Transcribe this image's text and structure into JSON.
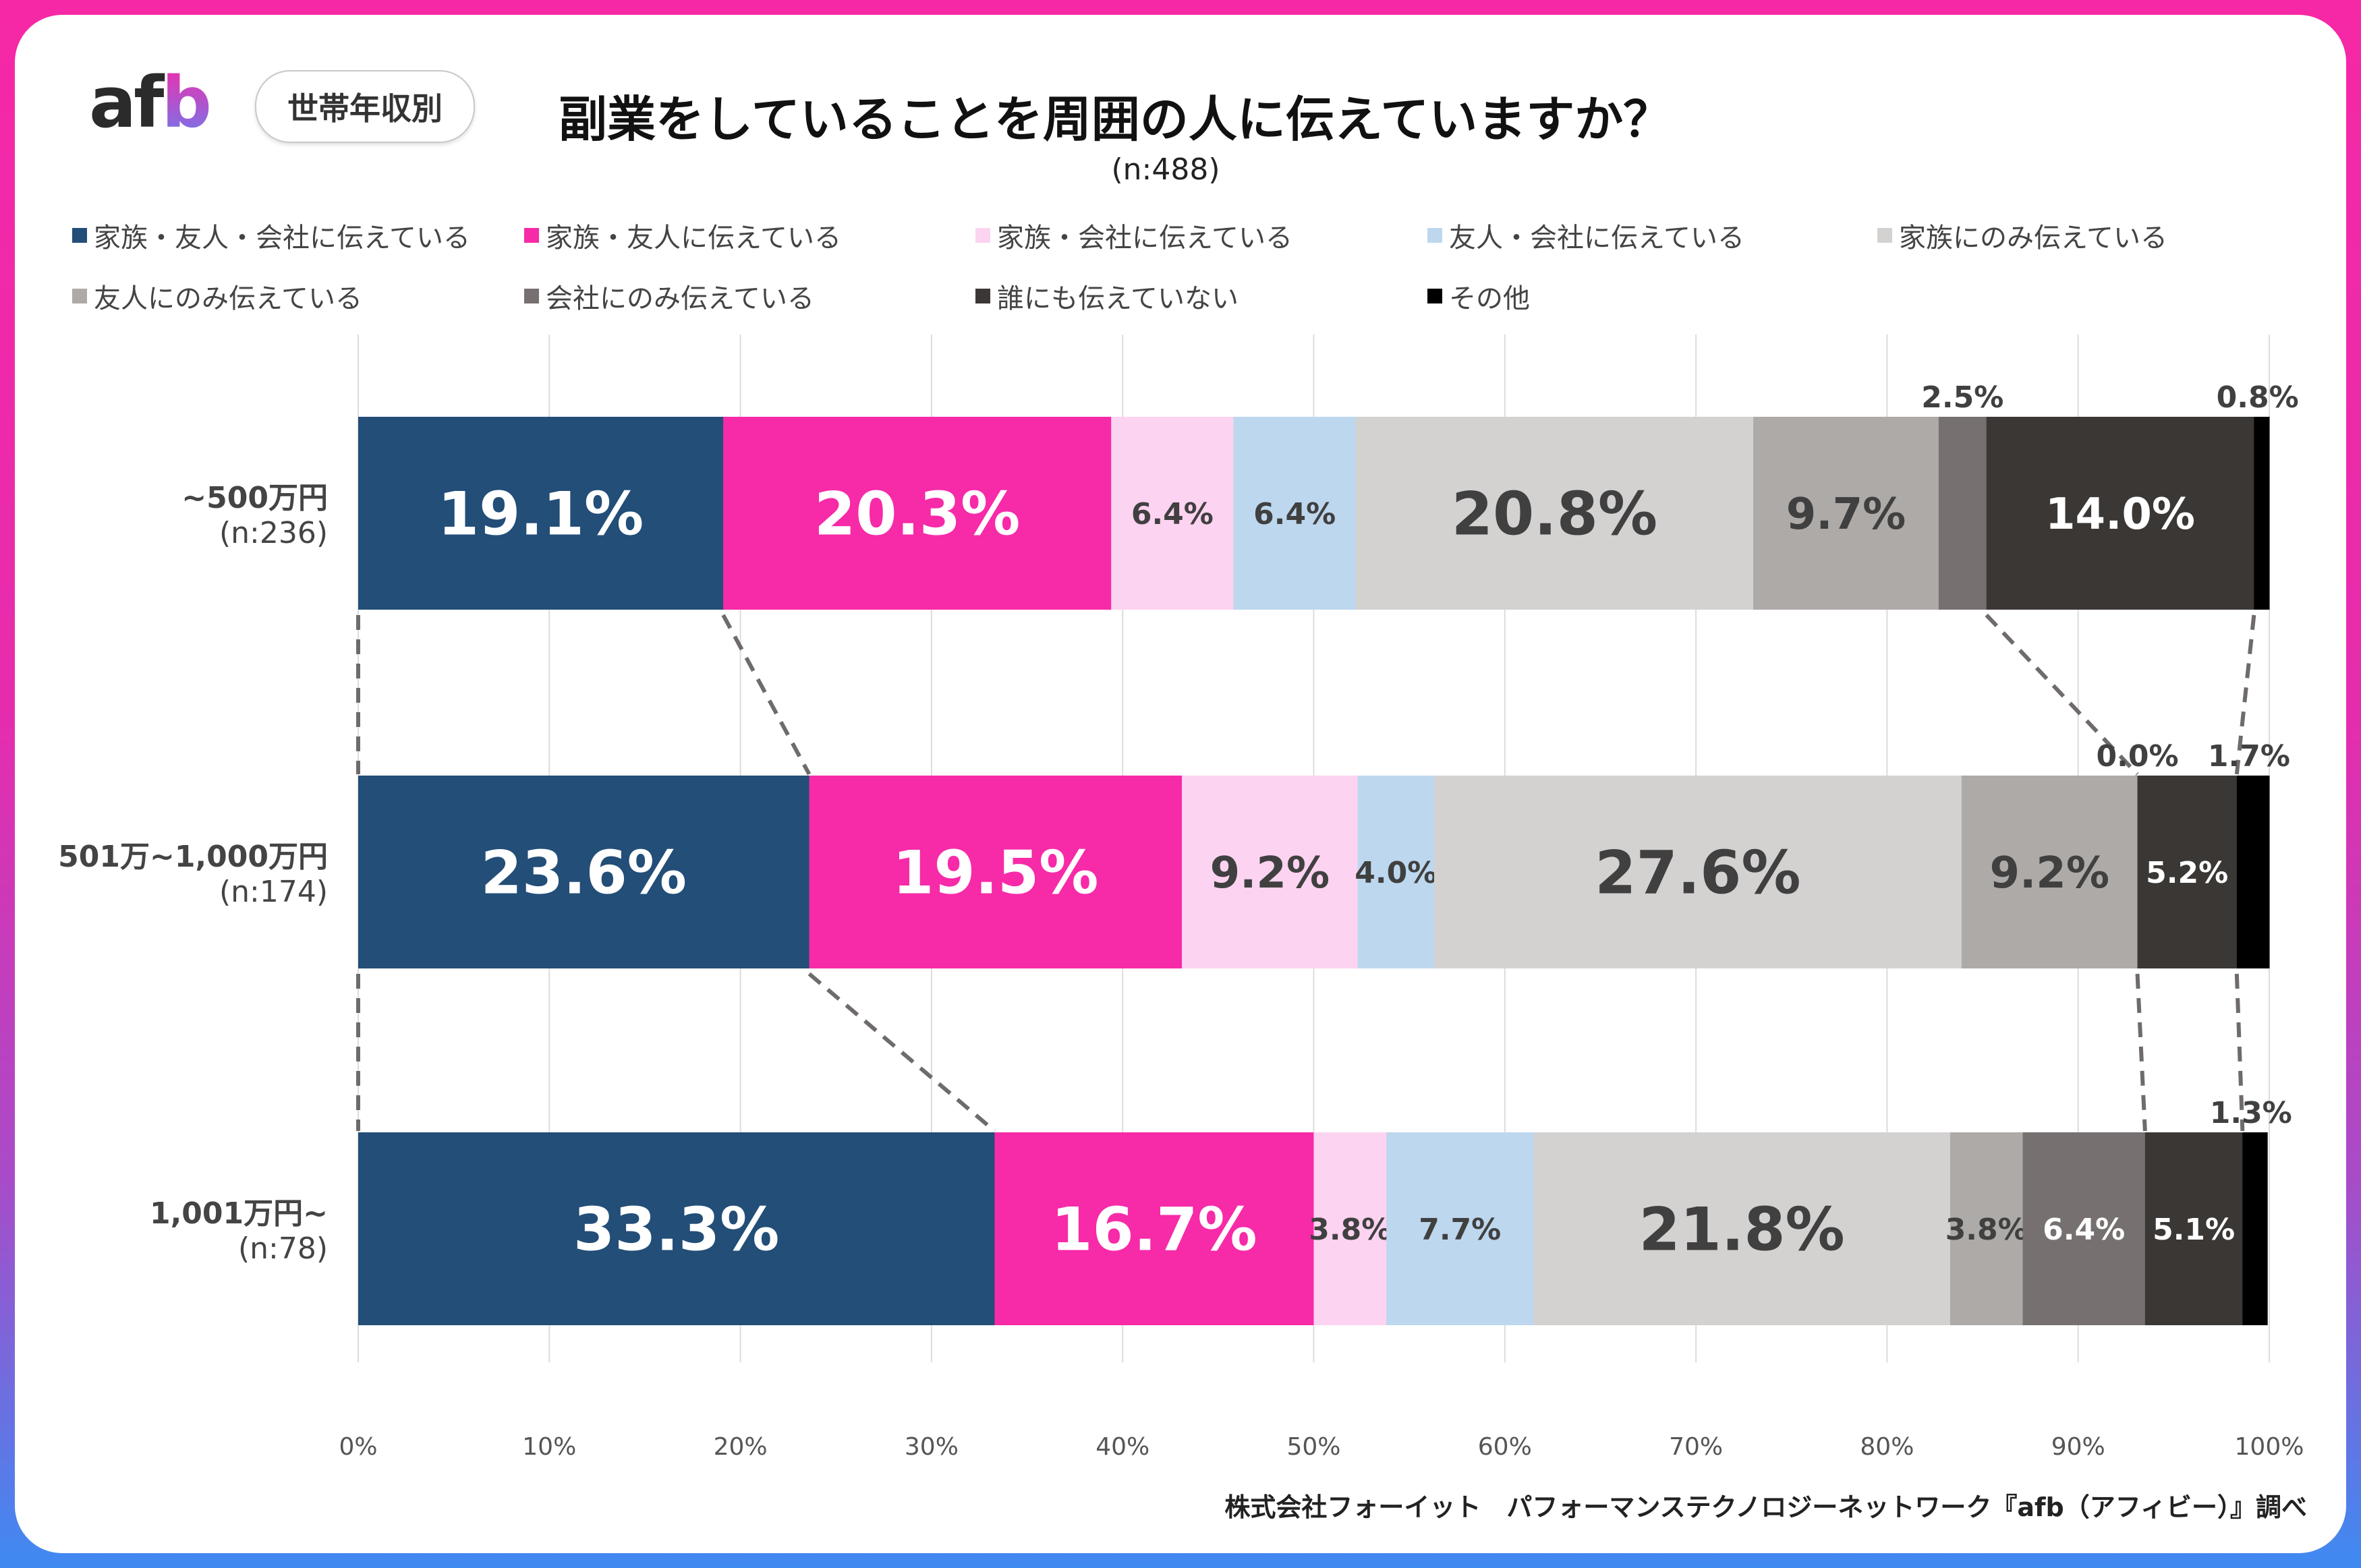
{
  "header": {
    "logo": "afb",
    "tag": "世帯年収別",
    "title": "副業をしていることを周囲の人に伝えていますか？",
    "n_total": "(n:488)"
  },
  "footer": "株式会社フォーイット　パフォーマンステクノロジーネットワーク『afb（アフィビー）』調べ",
  "chart_data": {
    "type": "bar",
    "orientation": "horizontal-stacked-100",
    "title": "副業をしていることを周囲の人に伝えていますか？",
    "categories": [
      {
        "label": "~500万円",
        "n": "(n:236)"
      },
      {
        "label": "501万~1,000万円",
        "n": "(n:174)"
      },
      {
        "label": "1,001万円~",
        "n": "(n:78)"
      }
    ],
    "series": [
      {
        "name": "家族・友人・会社に伝えている",
        "color": "#224e78",
        "values": [
          19.1,
          23.6,
          33.3
        ]
      },
      {
        "name": "家族・友人に伝えている",
        "color": "#f72aa8",
        "values": [
          20.3,
          19.5,
          16.7
        ]
      },
      {
        "name": "家族・会社に伝えている",
        "color": "#fcd3f0",
        "values": [
          6.4,
          9.2,
          3.8
        ]
      },
      {
        "name": "友人・会社に伝えている",
        "color": "#bdd7ee",
        "values": [
          6.4,
          4.0,
          7.7
        ]
      },
      {
        "name": "家族にのみ伝えている",
        "color": "#d4d1d1",
        "values": [
          20.8,
          27.6,
          21.8
        ]
      },
      {
        "name": "友人にのみ伝えている",
        "color": "#aeaaa8",
        "values": [
          9.7,
          9.2,
          3.8
        ]
      },
      {
        "name": "会社にのみ伝えている",
        "color": "#767070",
        "values": [
          2.5,
          0.0,
          6.4
        ]
      },
      {
        "name": "誰にも伝えていない",
        "color": "#3b3735",
        "values": [
          14.0,
          5.2,
          5.1
        ]
      },
      {
        "name": "その他",
        "color": "#000000",
        "values": [
          0.8,
          1.7,
          1.3
        ]
      }
    ],
    "xlim": [
      0,
      100
    ],
    "xticks": [
      "0%",
      "10%",
      "20%",
      "30%",
      "40%",
      "50%",
      "60%",
      "70%",
      "80%",
      "90%",
      "100%"
    ],
    "grid": true,
    "legend": "top",
    "connector_lines": "dashed"
  }
}
